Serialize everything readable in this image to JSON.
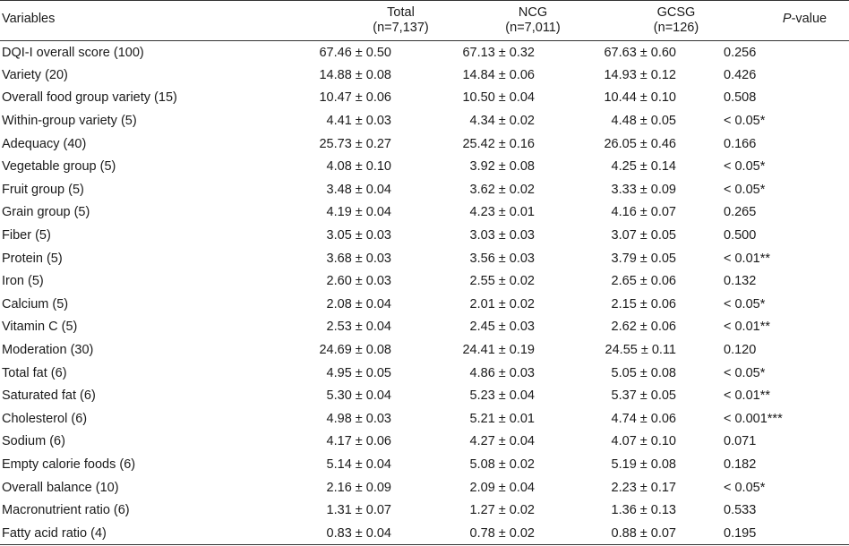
{
  "table": {
    "headers": {
      "variables": "Variables",
      "total": "Total",
      "total_n": "(n=7,137)",
      "ncg": "NCG",
      "ncg_n": "(n=7,011)",
      "gcsg": "GCSG",
      "gcsg_n": "(n=126)",
      "pvalue_italic": "P",
      "pvalue_rest": "-value"
    },
    "rows": [
      {
        "variable": "DQI-I overall score (100)",
        "total": "67.46 ± 0.50",
        "ncg": "67.13 ± 0.32",
        "gcsg": "67.63 ± 0.60",
        "p": "0.256"
      },
      {
        "variable": "Variety (20)",
        "total": "14.88 ± 0.08",
        "ncg": "14.84 ± 0.06",
        "gcsg": "14.93 ± 0.12",
        "p": "0.426"
      },
      {
        "variable": "Overall food group variety (15)",
        "total": "10.47 ± 0.06",
        "ncg": "10.50 ± 0.04",
        "gcsg": "10.44 ± 0.10",
        "p": "0.508"
      },
      {
        "variable": "Within-group variety (5)",
        "total": "4.41 ± 0.03",
        "ncg": "4.34 ± 0.02",
        "gcsg": "4.48 ± 0.05",
        "p": "< 0.05*"
      },
      {
        "variable": "Adequacy (40)",
        "total": "25.73 ± 0.27",
        "ncg": "25.42 ± 0.16",
        "gcsg": "26.05 ± 0.46",
        "p": "0.166"
      },
      {
        "variable": "Vegetable group (5)",
        "total": "4.08 ± 0.10",
        "ncg": "3.92 ± 0.08",
        "gcsg": "4.25 ± 0.14",
        "p": "< 0.05*"
      },
      {
        "variable": "Fruit group (5)",
        "total": "3.48 ± 0.04",
        "ncg": "3.62 ± 0.02",
        "gcsg": "3.33 ± 0.09",
        "p": "< 0.05*"
      },
      {
        "variable": "Grain group (5)",
        "total": "4.19 ± 0.04",
        "ncg": "4.23 ± 0.01",
        "gcsg": "4.16 ± 0.07",
        "p": "0.265"
      },
      {
        "variable": "Fiber (5)",
        "total": "3.05 ± 0.03",
        "ncg": "3.03 ± 0.03",
        "gcsg": "3.07 ± 0.05",
        "p": "0.500"
      },
      {
        "variable": "Protein (5)",
        "total": "3.68 ± 0.03",
        "ncg": "3.56 ± 0.03",
        "gcsg": "3.79 ± 0.05",
        "p": "< 0.01**"
      },
      {
        "variable": "Iron (5)",
        "total": "2.60 ± 0.03",
        "ncg": "2.55 ± 0.02",
        "gcsg": "2.65 ± 0.06",
        "p": "0.132"
      },
      {
        "variable": "Calcium (5)",
        "total": "2.08 ± 0.04",
        "ncg": "2.01 ± 0.02",
        "gcsg": "2.15 ± 0.06",
        "p": "< 0.05*"
      },
      {
        "variable": "Vitamin C (5)",
        "total": "2.53 ± 0.04",
        "ncg": "2.45 ± 0.03",
        "gcsg": "2.62 ± 0.06",
        "p": "< 0.01**"
      },
      {
        "variable": "Moderation (30)",
        "total": "24.69 ± 0.08",
        "ncg": "24.41 ± 0.19",
        "gcsg": "24.55 ± 0.11",
        "p": "0.120"
      },
      {
        "variable": "Total fat (6)",
        "total": "4.95 ± 0.05",
        "ncg": "4.86 ± 0.03",
        "gcsg": "5.05 ± 0.08",
        "p": "< 0.05*"
      },
      {
        "variable": "Saturated fat (6)",
        "total": "5.30 ± 0.04",
        "ncg": "5.23 ± 0.04",
        "gcsg": "5.37 ± 0.05",
        "p": "< 0.01**"
      },
      {
        "variable": "Cholesterol (6)",
        "total": "4.98 ± 0.03",
        "ncg": "5.21 ± 0.01",
        "gcsg": "4.74 ± 0.06",
        "p": "< 0.001***"
      },
      {
        "variable": "Sodium (6)",
        "total": "4.17 ± 0.06",
        "ncg": "4.27 ± 0.04",
        "gcsg": "4.07 ± 0.10",
        "p": "0.071"
      },
      {
        "variable": "Empty calorie foods (6)",
        "total": "5.14 ± 0.04",
        "ncg": "5.08 ± 0.02",
        "gcsg": "5.19 ± 0.08",
        "p": "0.182"
      },
      {
        "variable": "Overall balance (10)",
        "total": "2.16 ± 0.09",
        "ncg": "2.09 ± 0.04",
        "gcsg": "2.23 ± 0.17",
        "p": "< 0.05*"
      },
      {
        "variable": "Macronutrient ratio (6)",
        "total": "1.31 ± 0.07",
        "ncg": "1.27 ± 0.02",
        "gcsg": "1.36 ± 0.13",
        "p": "0.533"
      },
      {
        "variable": "Fatty acid ratio (4)",
        "total": "0.83 ± 0.04",
        "ncg": "0.78 ± 0.02",
        "gcsg": "0.88 ± 0.07",
        "p": "0.195"
      }
    ]
  }
}
